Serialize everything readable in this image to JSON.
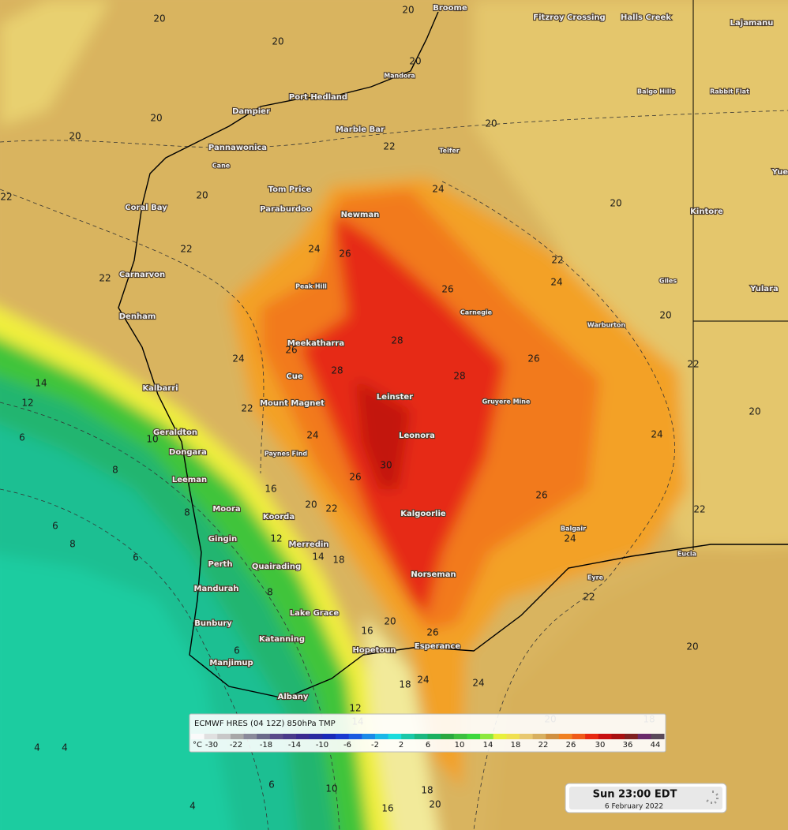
{
  "places": [
    "Broome",
    "Fitzroy Crossing",
    "Halls Creek",
    "Lajamanu",
    "Mandora",
    "Port Hedland",
    "Dampier",
    "Balgo Hills",
    "Rabbit Flat",
    "Marble Bar",
    "Telfer",
    "Pannawonica",
    "Cane",
    "Tom Price",
    "Paraburdoo",
    "Coral Bay",
    "Newman",
    "Kintore",
    "Yue",
    "Carnarvon",
    "Peak Hill",
    "Giles",
    "Yulara",
    "Denham",
    "Carnegie",
    "Warburton",
    "Meekatharra",
    "Cue",
    "Leinster",
    "Kalbarri",
    "Mount Magnet",
    "Gruyere Mine",
    "Geraldton",
    "Leonora",
    "Dongara",
    "Paynes Find",
    "Leeman",
    "Moora",
    "Koorda",
    "Kalgoorlie",
    "Balgair",
    "Gingin",
    "Merredin",
    "Eucla",
    "Perth",
    "Quairading",
    "Norseman",
    "Mandurah",
    "Eyre",
    "Lake Grace",
    "Bunbury",
    "Katanning",
    "Hopetoun",
    "Esperance",
    "Manjimup",
    "Albany"
  ],
  "contour_labels": [
    20,
    20,
    20,
    20,
    20,
    20,
    20,
    20,
    22,
    22,
    20,
    22,
    22,
    22,
    24,
    24,
    26,
    24,
    26,
    20,
    24,
    26,
    28,
    28,
    28,
    26,
    22,
    20,
    22,
    24,
    24,
    26,
    30,
    26,
    24,
    22,
    20,
    22,
    20,
    22,
    18,
    14,
    12,
    6,
    8,
    6,
    8,
    6,
    8,
    10,
    16,
    12,
    14,
    8,
    16,
    20,
    26,
    18,
    24,
    24,
    6,
    4,
    4,
    4,
    6,
    10,
    16,
    18,
    20,
    18,
    20,
    12,
    14
  ],
  "legend": {
    "title": "ECMWF HRES (04 12Z) 850hPa TMP",
    "unit": "°C",
    "ticks": [
      -30,
      -22,
      -18,
      -14,
      -10,
      -6,
      -2,
      2,
      6,
      10,
      14,
      18,
      22,
      26,
      30,
      36,
      44
    ]
  },
  "time": {
    "label": "Sun 23:00 EDT",
    "date": "6 February 2022"
  }
}
